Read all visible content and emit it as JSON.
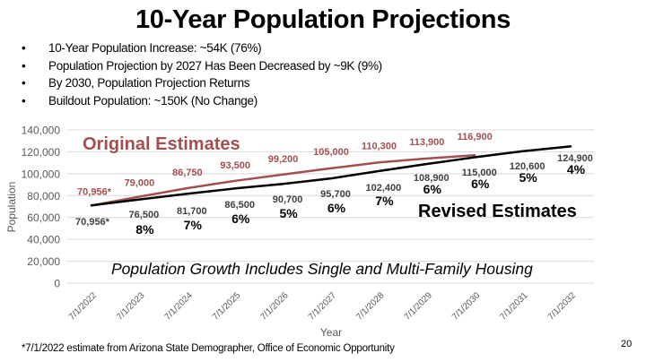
{
  "slide": {
    "title": "10-Year Population Projections",
    "bullets": [
      "10-Year Population Increase:  ~54K (76%)",
      "Population Projection by 2027 Has Been Decreased by ~9K (9%)",
      "By 2030, Population Projection Returns",
      "Buildout Population: ~150K (No Change)"
    ],
    "footnote": "*7/1/2022 estimate from Arizona State Demographer, Office of Economic Opportunity",
    "page_number": "20"
  },
  "chart_data": {
    "type": "line",
    "title": "",
    "xlabel": "Year",
    "ylabel": "Population",
    "ylim": [
      0,
      140000
    ],
    "yticks": [
      0,
      20000,
      40000,
      60000,
      80000,
      100000,
      120000,
      140000
    ],
    "ytick_labels": [
      "0",
      "20,000",
      "40,000",
      "60,000",
      "80,000",
      "100,000",
      "120,000",
      "140,000"
    ],
    "grid": true,
    "categories": [
      "7/1/2022",
      "7/1/2023",
      "7/1/2024",
      "7/1/2025",
      "7/1/2026",
      "7/1/2027",
      "7/1/2028",
      "7/1/2029",
      "7/1/2030",
      "7/1/2031",
      "7/1/2032"
    ],
    "series": [
      {
        "name": "Original Estimates",
        "color": "#A34F4F",
        "values": [
          70956,
          79000,
          86750,
          93500,
          99200,
          105000,
          110300,
          113900,
          116900
        ],
        "labels": [
          "70,956*",
          "79,000",
          "86,750",
          "93,500",
          "99,200",
          "105,000",
          "110,300",
          "113,900",
          "116,900"
        ]
      },
      {
        "name": "Revised Estimates",
        "color": "#000000",
        "values": [
          70956,
          76500,
          81700,
          86500,
          90700,
          95700,
          102400,
          108900,
          115000,
          120600,
          124900
        ],
        "labels": [
          "70,956*",
          "76,500",
          "81,700",
          "86,500",
          "90,700",
          "95,700",
          "102,400",
          "108,900",
          "115,000",
          "120,600",
          "124,900"
        ],
        "growth_labels": [
          "",
          "8%",
          "7%",
          "6%",
          "5%",
          "6%",
          "7%",
          "6%",
          "6%",
          "5%",
          "4%"
        ]
      }
    ],
    "annotations": {
      "original": "Original Estimates",
      "revised": "Revised Estimates",
      "note": "Population Growth Includes Single and Multi-Family Housing"
    }
  }
}
